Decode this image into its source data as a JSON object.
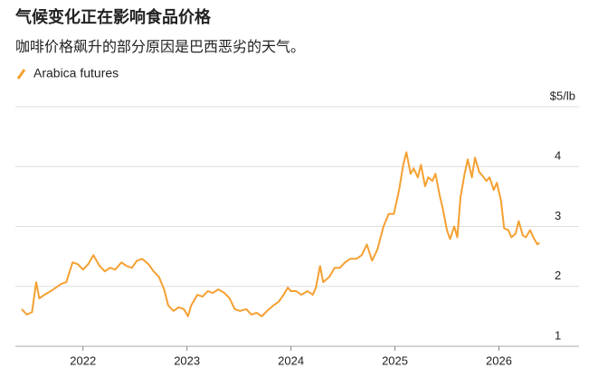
{
  "chart_data": {
    "type": "line",
    "title": "气候变化正在影响食品价格",
    "subtitle": "咖啡价格飙升的部分原因是巴西恶劣的天气。",
    "x": [
      2021.41,
      2021.46,
      2021.51,
      2021.55,
      2021.58,
      2021.63,
      2021.69,
      2021.74,
      2021.79,
      2021.84,
      2021.9,
      2021.95,
      2022.0,
      2022.05,
      2022.1,
      2022.16,
      2022.21,
      2022.26,
      2022.31,
      2022.37,
      2022.42,
      2022.47,
      2022.52,
      2022.57,
      2022.63,
      2022.68,
      2022.73,
      2022.78,
      2022.82,
      2022.87,
      2022.92,
      2022.97,
      2023.01,
      2023.04,
      2023.1,
      2023.15,
      2023.2,
      2023.25,
      2023.3,
      2023.36,
      2023.41,
      2023.46,
      2023.51,
      2023.57,
      2023.62,
      2023.67,
      2023.72,
      2023.77,
      2023.83,
      2023.88,
      2023.93,
      2023.97,
      2024.0,
      2024.05,
      2024.1,
      2024.16,
      2024.21,
      2024.24,
      2024.28,
      2024.31,
      2024.37,
      2024.42,
      2024.47,
      2024.52,
      2024.57,
      2024.63,
      2024.68,
      2024.73,
      2024.78,
      2024.83,
      2024.89,
      2024.94,
      2024.99,
      2025.04,
      2025.08,
      2025.11,
      2025.15,
      2025.18,
      2025.22,
      2025.25,
      2025.29,
      2025.32,
      2025.36,
      2025.39,
      2025.43,
      2025.46,
      2025.5,
      2025.53,
      2025.57,
      2025.6,
      2025.63,
      2025.67,
      2025.7,
      2025.74,
      2025.77,
      2025.81,
      2025.84,
      2025.88,
      2025.91,
      2025.95,
      2025.98,
      2026.02,
      2026.05,
      2026.09,
      2026.12,
      2026.16,
      2026.19,
      2026.23,
      2026.26,
      2026.3,
      2026.33,
      2026.37,
      2026.39
    ],
    "series": [
      {
        "name": "Arabica futures",
        "color": "#f5a031",
        "values": [
          1.62,
          1.53,
          1.57,
          2.07,
          1.8,
          1.86,
          1.92,
          1.98,
          2.04,
          2.07,
          2.4,
          2.37,
          2.28,
          2.37,
          2.52,
          2.34,
          2.25,
          2.31,
          2.28,
          2.4,
          2.34,
          2.31,
          2.43,
          2.46,
          2.37,
          2.25,
          2.16,
          1.95,
          1.68,
          1.59,
          1.65,
          1.62,
          1.5,
          1.68,
          1.86,
          1.83,
          1.92,
          1.89,
          1.95,
          1.89,
          1.8,
          1.62,
          1.59,
          1.62,
          1.53,
          1.56,
          1.5,
          1.59,
          1.68,
          1.74,
          1.86,
          1.98,
          1.92,
          1.92,
          1.86,
          1.92,
          1.86,
          1.98,
          2.34,
          2.07,
          2.16,
          2.31,
          2.31,
          2.4,
          2.46,
          2.46,
          2.52,
          2.7,
          2.43,
          2.61,
          3.0,
          3.21,
          3.21,
          3.61,
          4.03,
          4.24,
          3.88,
          3.97,
          3.82,
          4.03,
          3.67,
          3.82,
          3.76,
          3.88,
          3.52,
          3.3,
          2.94,
          2.79,
          3.0,
          2.82,
          3.48,
          3.88,
          4.12,
          3.82,
          4.15,
          3.91,
          3.85,
          3.76,
          3.82,
          3.61,
          3.73,
          3.43,
          2.97,
          2.94,
          2.82,
          2.88,
          3.09,
          2.85,
          2.82,
          2.94,
          2.82,
          2.7,
          2.73
        ]
      }
    ],
    "xlim": [
      2021.35,
      2026.77
    ],
    "xticks": [
      2022,
      2023,
      2024,
      2025,
      2026
    ],
    "ylim": [
      1,
      5
    ],
    "yticks": [
      1,
      2,
      3,
      4,
      {
        "value": 5,
        "label": "$5/lb"
      }
    ],
    "grid": true
  }
}
